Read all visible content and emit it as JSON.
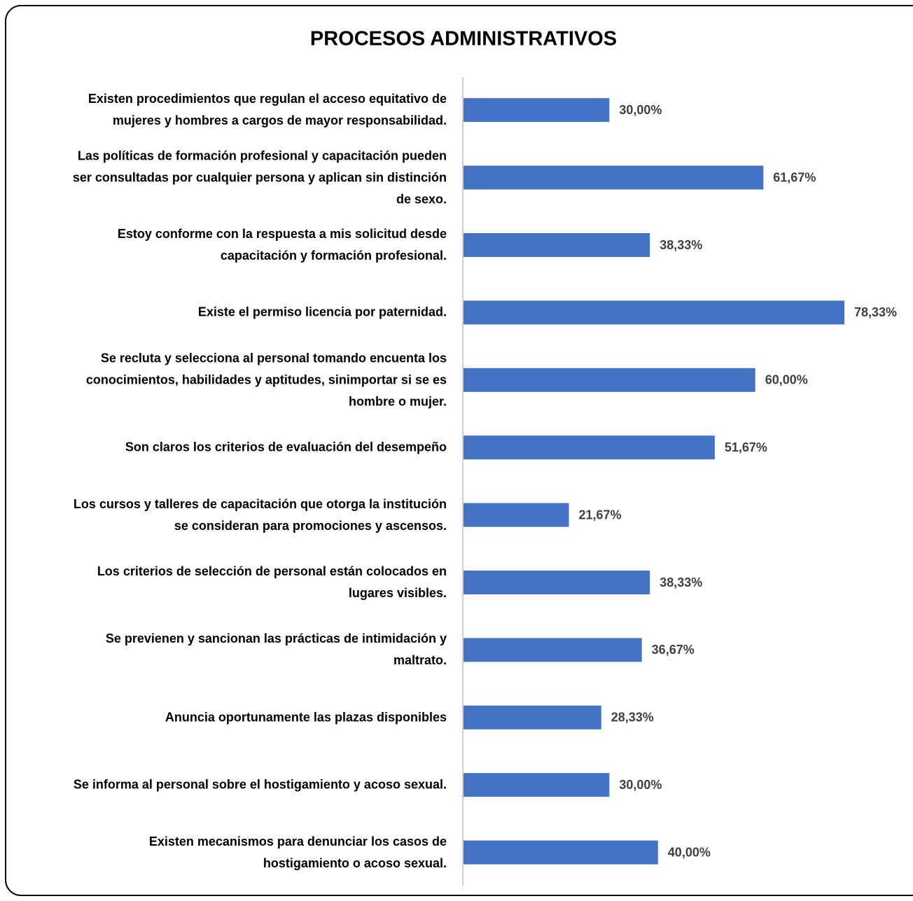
{
  "chart_data": {
    "type": "bar",
    "orientation": "horizontal",
    "title": "PROCESOS ADMINISTRATIVOS",
    "categories": [
      "Existen procedimientos que regulan el acceso equitativo de\nmujeres y hombres a cargos de mayor responsabilidad.",
      "Las políticas de formación profesional y capacitación pueden\nser consultadas por cualquier persona y aplican sin distinción\nde sexo.",
      "Estoy conforme con la respuesta a mis solicitud desde\ncapacitación y formación profesional.",
      "Existe el permiso licencia por paternidad.",
      "Se recluta y selecciona al personal tomando encuenta los\nconocimientos, habilidades y aptitudes, sinimportar si se es\nhombre o mujer.",
      "Son claros los criterios de evaluación del desempeño",
      "Los cursos y talleres de capacitación que otorga la institución\nse consideran para promociones y ascensos.",
      "Los criterios de selección de personal están colocados en\nlugares visibles.",
      "Se previenen y sancionan las prácticas de intimidación y\nmaltrato.",
      "Anuncia oportunamente las plazas disponibles",
      "Se informa al personal sobre el hostigamiento y acoso sexual.",
      "Existen mecanismos para denunciar los casos de\nhostigamiento o acoso sexual."
    ],
    "values": [
      30,
      61.67,
      38.33,
      78.33,
      60,
      51.67,
      21.67,
      38.33,
      36.67,
      28.33,
      30,
      40
    ],
    "value_labels": [
      "30,00%",
      "61,67%",
      "38,33%",
      "78,33%",
      "60,00%",
      "51,67%",
      "21,67%",
      "38,33%",
      "36,67%",
      "28,33%",
      "30,00%",
      "40,00%"
    ],
    "color": "#4472c4"
  }
}
